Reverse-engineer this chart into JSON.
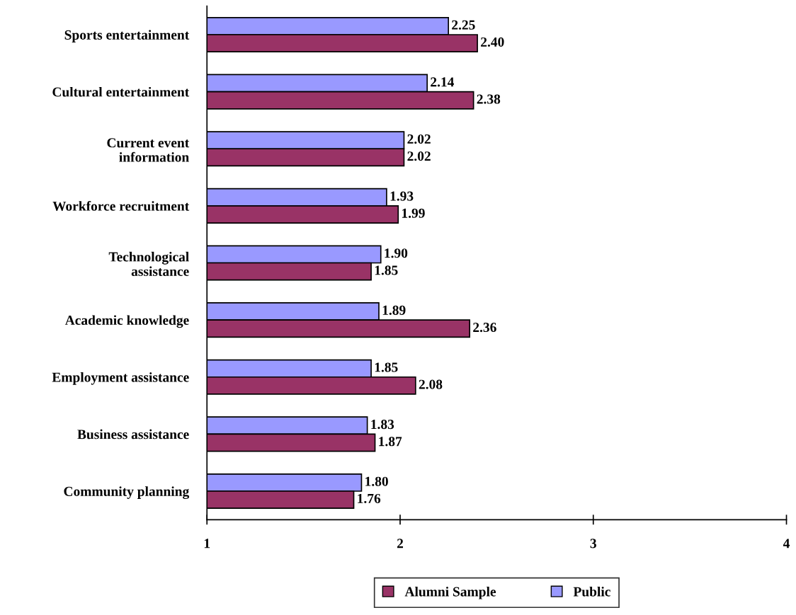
{
  "chart_data": {
    "type": "bar",
    "orientation": "horizontal",
    "categories": [
      "Sports entertainment",
      "Cultural entertainment",
      "Current event\ninformation",
      "Workforce recruitment",
      "Technological\nassistance",
      "Academic knowledge",
      "Employment assistance",
      "Business assistance",
      "Community planning"
    ],
    "series": [
      {
        "name": "Public",
        "color": "#9999ff",
        "values": [
          2.25,
          2.14,
          2.02,
          1.93,
          1.9,
          1.89,
          1.85,
          1.83,
          1.8
        ],
        "value_labels": [
          "2.25",
          "2.14",
          "2.02",
          "1.93",
          "1.90",
          "1.89",
          "1.85",
          "1.83",
          "1.80"
        ]
      },
      {
        "name": "Alumni Sample",
        "color": "#993366",
        "values": [
          2.4,
          2.38,
          2.02,
          1.99,
          1.85,
          2.36,
          2.08,
          1.87,
          1.76
        ],
        "value_labels": [
          "2.40",
          "2.38",
          "2.02",
          "1.99",
          "1.85",
          "2.36",
          "2.08",
          "1.87",
          "1.76"
        ]
      }
    ],
    "xlim": [
      1,
      4
    ],
    "xticks": [
      1,
      2,
      3,
      4
    ],
    "grid": false,
    "legend": "bottom"
  }
}
